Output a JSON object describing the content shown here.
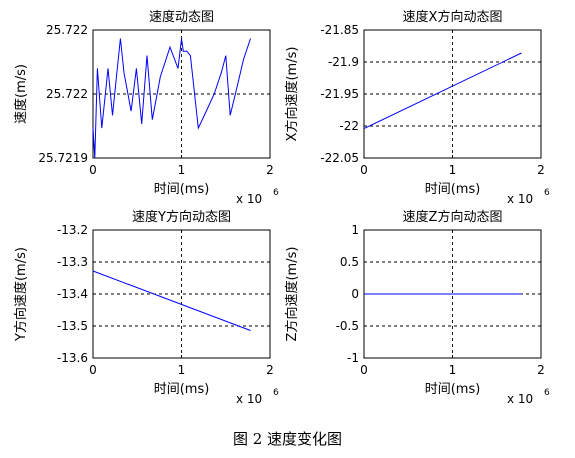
{
  "figure_caption": "图 2 速度变化图",
  "chart_data": [
    {
      "type": "line",
      "title": "速度动态图",
      "xlabel": "时间(ms)",
      "ylabel": "速度(m/s)",
      "x_exponent_label": "x 10",
      "x_exponent": "6",
      "xlim": [
        0,
        2000000
      ],
      "ylim": [
        25.7219,
        25.7222
      ],
      "x_ticks": [
        0,
        1000000,
        2000000
      ],
      "x_tick_labels": [
        "0",
        "1",
        "2"
      ],
      "y_ticks": [
        25.7219,
        25.72205,
        25.7222
      ],
      "y_tick_labels": [
        "25.7219",
        "25.722",
        "25.722"
      ],
      "grid": true,
      "color": "#0000ff",
      "x": [
        0,
        20000,
        50000,
        100000,
        170000,
        220000,
        310000,
        350000,
        430000,
        490000,
        550000,
        610000,
        670000,
        760000,
        870000,
        960000,
        1000000,
        1020000,
        1060000,
        1100000,
        1190000,
        1280000,
        1370000,
        1450000,
        1500000,
        1550000,
        1620000,
        1700000,
        1780000
      ],
      "y": [
        25.72197,
        25.7219,
        25.72211,
        25.72197,
        25.72211,
        25.722,
        25.72218,
        25.7221,
        25.72201,
        25.72211,
        25.72198,
        25.72214,
        25.72199,
        25.72209,
        25.72216,
        25.72211,
        25.72218,
        25.72215,
        25.72215,
        25.72214,
        25.72197,
        25.72201,
        25.72205,
        25.7221,
        25.72214,
        25.722,
        25.72206,
        25.72213,
        25.72218
      ]
    },
    {
      "type": "line",
      "title": "速度X方向动态图",
      "xlabel": "时间(ms)",
      "ylabel": "X方向速度(m/s)",
      "x_exponent_label": "x 10",
      "x_exponent": "6",
      "xlim": [
        0,
        2000000
      ],
      "ylim": [
        -22.05,
        -21.85
      ],
      "x_ticks": [
        0,
        1000000,
        2000000
      ],
      "x_tick_labels": [
        "0",
        "1",
        "2"
      ],
      "y_ticks": [
        -22.05,
        -22.0,
        -21.95,
        -21.9,
        -21.85
      ],
      "y_tick_labels": [
        "-22.05",
        "-22",
        "-21.95",
        "-21.9",
        "-21.85"
      ],
      "grid": true,
      "color": "#0000ff",
      "x": [
        0,
        1780000
      ],
      "y": [
        -22.004,
        -21.886
      ]
    },
    {
      "type": "line",
      "title": "速度Y方向动态图",
      "xlabel": "时间(ms)",
      "ylabel": "Y方向速度(m/s)",
      "x_exponent_label": "x 10",
      "x_exponent": "6",
      "xlim": [
        0,
        2000000
      ],
      "ylim": [
        -13.6,
        -13.2
      ],
      "x_ticks": [
        0,
        1000000,
        2000000
      ],
      "x_tick_labels": [
        "0",
        "1",
        "2"
      ],
      "y_ticks": [
        -13.6,
        -13.5,
        -13.4,
        -13.3,
        -13.2
      ],
      "y_tick_labels": [
        "-13.6",
        "-13.5",
        "-13.4",
        "-13.3",
        "-13.2"
      ],
      "grid": true,
      "color": "#0000ff",
      "x": [
        0,
        1780000
      ],
      "y": [
        -13.328,
        -13.514
      ]
    },
    {
      "type": "line",
      "title": "速度Z方向动态图",
      "xlabel": "时间(ms)",
      "ylabel": "Z方向速度(m/s)",
      "x_exponent_label": "x 10",
      "x_exponent": "6",
      "xlim": [
        0,
        2000000
      ],
      "ylim": [
        -1,
        1
      ],
      "x_ticks": [
        0,
        1000000,
        2000000
      ],
      "x_tick_labels": [
        "0",
        "1",
        "2"
      ],
      "y_ticks": [
        -1,
        -0.5,
        0,
        0.5,
        1
      ],
      "y_tick_labels": [
        "-1",
        "-0.5",
        "0",
        "0.5",
        "1"
      ],
      "grid": true,
      "color": "#0000ff",
      "x": [
        0,
        1780000
      ],
      "y": [
        0,
        0
      ]
    }
  ]
}
